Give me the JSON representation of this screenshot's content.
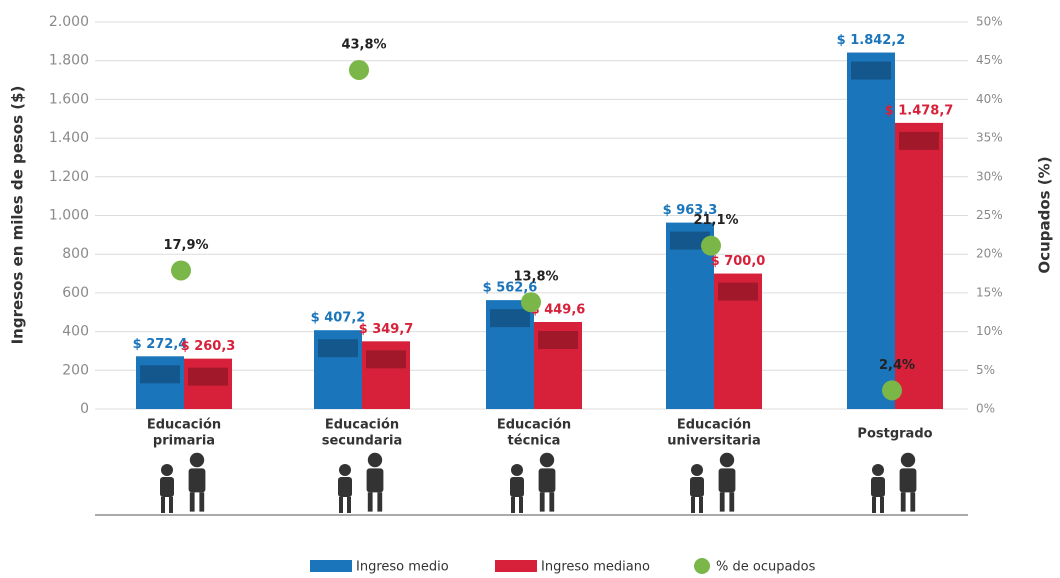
{
  "chart_data": {
    "type": "bar",
    "ylabel": "Ingresos en miles de pesos ($)",
    "y2label": "Ocupados (%)",
    "categories": [
      [
        "Educación",
        "primaria"
      ],
      [
        "Educación",
        "secundaria"
      ],
      [
        "Educación",
        "técnica"
      ],
      [
        "Educación",
        "universitaria"
      ],
      [
        "Postgrado"
      ]
    ],
    "series": [
      {
        "name": "Ingreso medio",
        "color": "#1a75bb",
        "values": [
          272.4,
          407.2,
          562.6,
          963.3,
          1842.2
        ],
        "value_labels": [
          "$ 272,4",
          "$ 407,2",
          "$ 562,6",
          "$ 963,3",
          "$ 1.842,2"
        ]
      },
      {
        "name": "Ingreso mediano",
        "color": "#d7213a",
        "values": [
          260.3,
          349.7,
          449.6,
          700.0,
          1478.7
        ],
        "value_labels": [
          "$ 260,3",
          "$ 349,7",
          "$ 449,6",
          "$ 700,0",
          "$ 1.478,7"
        ]
      },
      {
        "name": "% de ocupados",
        "color": "#7ab648",
        "axis": "y2",
        "type": "scatter",
        "values": [
          17.9,
          43.8,
          13.8,
          21.1,
          2.4
        ],
        "value_labels": [
          "17,9%",
          "43,8%",
          "13,8%",
          "21,1%",
          "2,4%"
        ]
      }
    ],
    "ylim": [
      0,
      2000
    ],
    "yticks": [
      0,
      200,
      400,
      600,
      800,
      {
        "value": 1000,
        "label": "1.000"
      },
      {
        "value": 1200,
        "label": "1.200"
      },
      {
        "value": 1400,
        "label": "1.400"
      },
      {
        "value": 1600,
        "label": "1.600"
      },
      {
        "value": 1800,
        "label": "1.800"
      },
      {
        "value": 2000,
        "label": "2.000"
      }
    ],
    "y2lim": [
      0,
      50
    ],
    "y2ticks": [
      {
        "value": 0,
        "label": "0%"
      },
      {
        "value": 5,
        "label": "5%"
      },
      {
        "value": 10,
        "label": "10%"
      },
      {
        "value": 15,
        "label": "15%"
      },
      {
        "value": 20,
        "label": "20%"
      },
      {
        "value": 25,
        "label": "25%"
      },
      {
        "value": 30,
        "label": "30%"
      },
      {
        "value": 35,
        "label": "35%"
      },
      {
        "value": 40,
        "label": "40%"
      },
      {
        "value": 45,
        "label": "45%"
      },
      {
        "value": 50,
        "label": "50%"
      }
    ],
    "grid": true,
    "legend": "bottom"
  }
}
